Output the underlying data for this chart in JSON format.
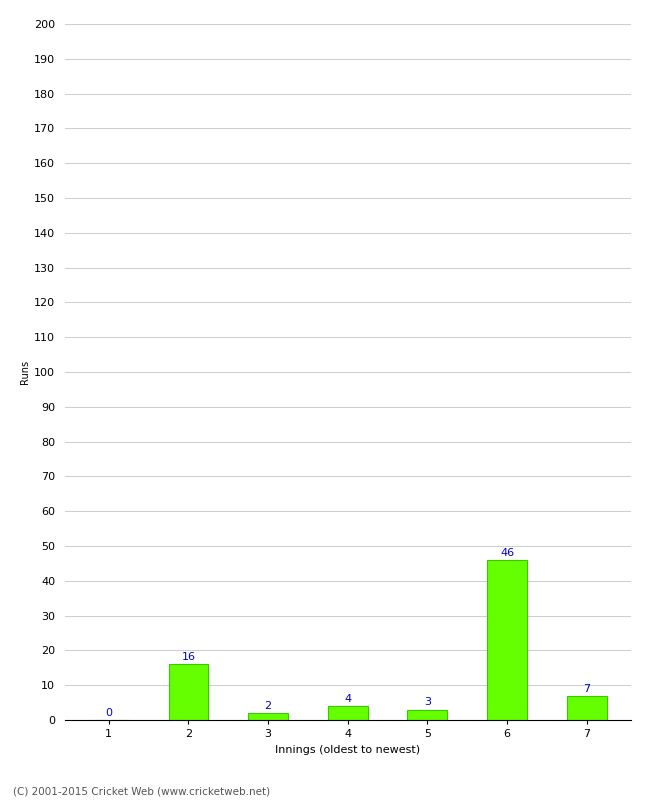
{
  "xlabel": "Innings (oldest to newest)",
  "ylabel": "Runs",
  "categories": [
    "1",
    "2",
    "3",
    "4",
    "5",
    "6",
    "7"
  ],
  "values": [
    0,
    16,
    2,
    4,
    3,
    46,
    7
  ],
  "bar_color": "#66ff00",
  "bar_edge_color": "#33cc00",
  "label_color": "#0000cc",
  "ylim": [
    0,
    200
  ],
  "yticks": [
    0,
    10,
    20,
    30,
    40,
    50,
    60,
    70,
    80,
    90,
    100,
    110,
    120,
    130,
    140,
    150,
    160,
    170,
    180,
    190,
    200
  ],
  "background_color": "#ffffff",
  "footer": "(C) 2001-2015 Cricket Web (www.cricketweb.net)",
  "footer_color": "#555555",
  "grid_color": "#cccccc",
  "label_fontsize": 8,
  "axis_tick_fontsize": 8,
  "xlabel_fontsize": 8,
  "ylabel_fontsize": 7,
  "footer_fontsize": 7.5
}
